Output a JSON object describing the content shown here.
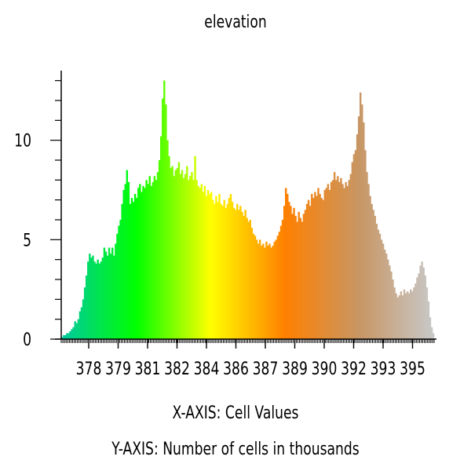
{
  "chart_data": {
    "type": "bar",
    "title": "elevation",
    "xlabel": "X-AXIS: Cell Values",
    "ylabel": "Y-AXIS: Number of cells in thousands",
    "x_tick_labels": [
      "378",
      "379",
      "381",
      "382",
      "384",
      "386",
      "387",
      "389",
      "390",
      "392",
      "393",
      "395"
    ],
    "y_tick_labels": [
      "0",
      "5",
      "10"
    ],
    "ylim": [
      0,
      13.5
    ],
    "grid": false,
    "legend": "none",
    "color_ramp": [
      "#00c8a0",
      "#00ff00",
      "#ffff00",
      "#ff8000",
      "#c89664",
      "#c8c8c8"
    ],
    "series": [
      {
        "values": [
          0.1,
          0.2,
          0.2,
          0.3,
          0.3,
          0.4,
          0.5,
          0.6,
          0.9,
          0.8,
          1.0,
          1.4,
          1.6,
          2.0,
          2.6,
          3.2,
          3.9,
          4.3,
          4.1,
          4.2,
          3.9,
          3.8,
          4.0,
          3.8,
          3.9,
          4.1,
          4.6,
          4.4,
          4.2,
          4.6,
          4.3,
          4.6,
          4.2,
          4.8,
          5.3,
          5.7,
          6.0,
          6.8,
          7.5,
          7.8,
          8.5,
          7.9,
          6.8,
          7.1,
          6.9,
          7.3,
          7.1,
          7.6,
          7.8,
          7.4,
          7.7,
          7.6,
          8.0,
          7.8,
          8.2,
          7.7,
          7.9,
          8.2,
          8.0,
          8.4,
          9.0,
          10.2,
          12.1,
          13.0,
          11.8,
          10.0,
          9.2,
          8.6,
          8.7,
          8.2,
          8.5,
          8.6,
          8.9,
          8.3,
          8.5,
          8.1,
          8.3,
          8.7,
          8.0,
          8.2,
          8.4,
          8.0,
          9.2,
          8.0,
          7.7,
          7.6,
          7.8,
          7.4,
          7.7,
          7.2,
          7.5,
          7.3,
          7.4,
          7.0,
          6.8,
          7.2,
          6.9,
          7.3,
          6.8,
          6.7,
          7.0,
          6.6,
          6.8,
          7.1,
          7.3,
          6.9,
          6.6,
          6.5,
          6.8,
          6.5,
          6.7,
          6.4,
          6.2,
          6.5,
          6.1,
          5.9,
          6.0,
          5.6,
          5.3,
          5.2,
          5.0,
          4.8,
          5.0,
          4.7,
          4.8,
          4.6,
          4.9,
          4.7,
          4.8,
          4.6,
          4.7,
          4.9,
          5.0,
          5.2,
          5.4,
          5.7,
          6.0,
          6.7,
          7.6,
          7.3,
          6.9,
          6.7,
          6.3,
          6.6,
          6.2,
          5.9,
          6.4,
          6.1,
          5.9,
          6.3,
          6.5,
          6.8,
          7.0,
          6.7,
          7.3,
          7.1,
          7.4,
          7.2,
          7.6,
          7.3,
          7.1,
          7.0,
          7.5,
          7.6,
          7.8,
          7.5,
          7.9,
          8.0,
          8.4,
          8.0,
          8.2,
          7.9,
          8.1,
          7.8,
          7.6,
          7.9,
          7.7,
          8.0,
          8.3,
          8.9,
          9.3,
          9.5,
          10.3,
          11.2,
          12.4,
          11.8,
          10.9,
          9.5,
          8.4,
          7.8,
          7.2,
          6.8,
          6.5,
          6.2,
          5.8,
          5.5,
          5.3,
          5.0,
          4.8,
          4.5,
          4.3,
          4.0,
          3.7,
          3.4,
          3.0,
          2.6,
          2.3,
          2.1,
          2.2,
          2.4,
          2.2,
          2.5,
          2.3,
          2.4,
          2.3,
          2.5,
          2.4,
          2.6,
          2.8,
          3.1,
          3.3,
          3.7,
          3.9,
          3.6,
          3.2,
          2.6,
          1.9,
          1.1,
          0.6,
          0.3
        ]
      }
    ]
  }
}
